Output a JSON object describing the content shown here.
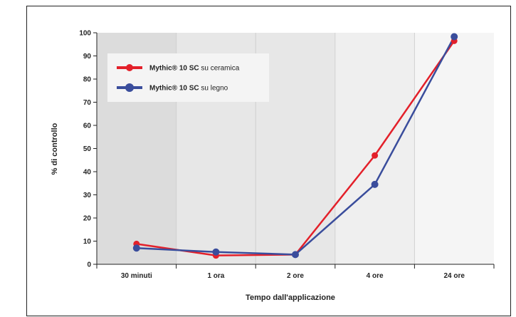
{
  "chart_data": {
    "type": "line",
    "categories": [
      "30 minuti",
      "1 ora",
      "2 ore",
      "4 ore",
      "24 ore"
    ],
    "xlabel": "Tempo dall'applicazione",
    "ylabel": "% di controllo",
    "ylim": [
      0,
      100
    ],
    "yticks": [
      0,
      10,
      20,
      30,
      40,
      50,
      60,
      70,
      80,
      90,
      100
    ],
    "grid": false,
    "legend_position": "top-left",
    "background_bands": [
      "#dcdcdc",
      "#e7e7e7",
      "#e7e7e7",
      "#efefef",
      "#f5f5f5"
    ],
    "series": [
      {
        "name": "Mythic® 10 SC su ceramica",
        "name_bold": "Mythic® 10 SC",
        "name_rest": " su ceramica",
        "color": "#e3202a",
        "values": [
          8.8,
          3.8,
          4.2,
          47,
          96.5
        ]
      },
      {
        "name": "Mythic® 10 SC su legno",
        "name_bold": "Mythic® 10 SC",
        "name_rest": " su legno",
        "color": "#3a4d9c",
        "values": [
          7,
          5.3,
          4.2,
          34.5,
          98.3
        ]
      }
    ]
  }
}
